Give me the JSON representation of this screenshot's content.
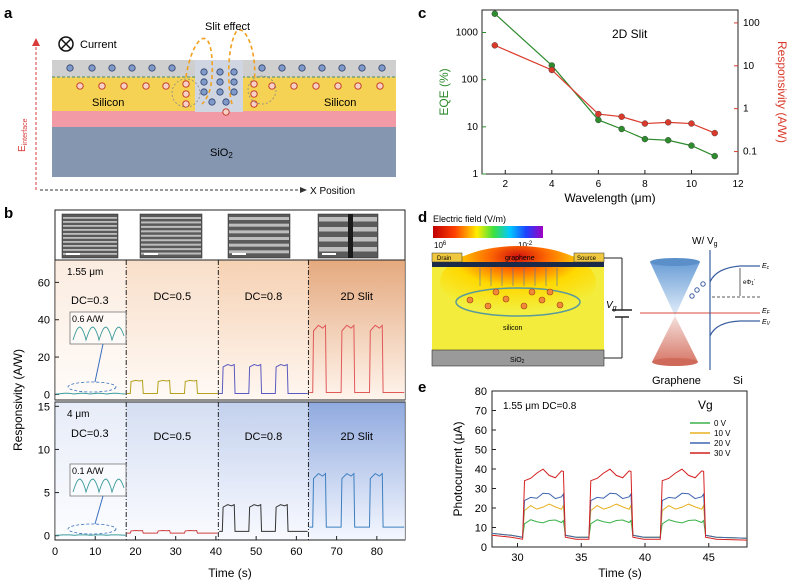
{
  "panel_labels": {
    "a": "a",
    "b": "b",
    "c": "c",
    "d": "d",
    "e": "e"
  },
  "panel_a": {
    "slit_effect": "Slit effect",
    "current": "Current",
    "silicon_left": "Silicon",
    "silicon_right": "Silicon",
    "sio2": "SiO",
    "sio2_sub": "2",
    "e_axis": "E",
    "e_axis_sub": "interface",
    "x_axis": "X Position"
  },
  "panel_d": {
    "colorbar_title": "Electric field (V/m)",
    "cb_max": "10",
    "cb_max_exp": "6",
    "cb_min": "10",
    "cb_min_exp": "-2",
    "drain": "Drain",
    "source": "Source",
    "graphene": "graphene",
    "silicon": "silicon",
    "sio2": "SiO",
    "sio2_sub": "2",
    "vg": "V",
    "vg_sub": "g",
    "band_title": "W/ V",
    "band_title_sub": "g",
    "graphene_label": "Graphene",
    "si_label": "Si",
    "ec": "E",
    "ec_sub": "c",
    "ef": "E",
    "ef_sub": "F",
    "ev": "E",
    "ev_sub": "V",
    "phi": "eΦ",
    "phi_sub": "1",
    "phi_prime": "'"
  },
  "chart_data": [
    {
      "id": "c",
      "type": "line",
      "title": "2D Slit",
      "xlabel": "Wavelength (μm)",
      "ylabel_left": "EQE (%)",
      "ylabel_right": "Responsivity (A/W)",
      "xlim": [
        1,
        12
      ],
      "xticks": [
        2,
        4,
        6,
        8,
        10,
        12
      ],
      "ylim_left": [
        1,
        3000
      ],
      "ylim_right": [
        0.03,
        200
      ],
      "yticks_left": [
        "1",
        "10",
        "100",
        "1000"
      ],
      "yticks_right": [
        "0.1",
        "1",
        "10",
        "100"
      ],
      "scale": "log",
      "series": [
        {
          "axis": "left",
          "color": "#2e8b2e",
          "x": [
            1.55,
            4,
            6,
            7,
            8,
            9,
            10,
            11
          ],
          "y": [
            2500,
            200,
            14,
            9,
            5.5,
            5.2,
            4.0,
            2.4
          ]
        },
        {
          "axis": "right",
          "color": "#d93a2b",
          "x": [
            1.55,
            4,
            6,
            7,
            8,
            9,
            10,
            11
          ],
          "y": [
            30,
            8,
            0.75,
            0.65,
            0.45,
            0.48,
            0.45,
            0.27
          ]
        }
      ]
    },
    {
      "id": "b",
      "type": "line",
      "xlabel": "Time (s)",
      "ylabel": "Responsivity (A/W)",
      "xlim": [
        0,
        87
      ],
      "xticks": [
        0,
        10,
        20,
        30,
        40,
        50,
        60,
        70,
        80
      ],
      "separators": [
        17.7,
        40.6,
        63
      ],
      "top": {
        "label": "1.55 μm",
        "ylim": [
          -3,
          72
        ],
        "yticks": [
          0,
          20,
          40,
          60
        ],
        "regions": [
          {
            "label": "DC=0.3",
            "x0": 0,
            "x1": 17.7,
            "low": 0.2,
            "high": 0.6,
            "color": "#3a9a9a"
          },
          {
            "label": "DC=0.5",
            "x0": 17.7,
            "x1": 40.6,
            "low": 0.5,
            "high": 7.5,
            "color": "#b5a21f"
          },
          {
            "label": "DC=0.8",
            "x0": 40.6,
            "x1": 63,
            "low": 0.5,
            "high": 16,
            "color": "#5a5ac0"
          },
          {
            "label": "2D Slit",
            "x0": 63,
            "x1": 87,
            "low": 1,
            "high": 37,
            "color": "#e05a5a"
          }
        ],
        "inset_label": "0.6 A/W"
      },
      "bottom": {
        "label": "4 μm",
        "ylim": [
          -0.5,
          15.5
        ],
        "yticks": [
          0,
          5,
          10,
          15
        ],
        "regions": [
          {
            "label": "DC=0.3",
            "x0": 0,
            "x1": 17.7,
            "low": 0.05,
            "high": 0.1,
            "color": "#3a9a9a"
          },
          {
            "label": "DC=0.5",
            "x0": 17.7,
            "x1": 40.6,
            "low": 0.3,
            "high": 0.6,
            "color": "#d04040"
          },
          {
            "label": "DC=0.8",
            "x0": 40.6,
            "x1": 63,
            "low": 0.5,
            "high": 3.6,
            "color": "#333333"
          },
          {
            "label": "2D Slit",
            "x0": 63,
            "x1": 87,
            "low": 1,
            "high": 7.2,
            "color": "#3d7fbf"
          }
        ],
        "inset_label": "0.1 A/W"
      }
    },
    {
      "id": "e",
      "type": "line",
      "title": "1.55 μm DC=0.8",
      "legend_title": "Vg",
      "xlabel": "Time (s)",
      "ylabel": "Photocurrent (μA)",
      "xlim": [
        28,
        48
      ],
      "xticks": [
        30,
        35,
        40,
        45
      ],
      "ylim": [
        0,
        80
      ],
      "yticks": [
        0,
        10,
        20,
        30,
        40,
        50,
        60,
        70,
        80
      ],
      "on_intervals": [
        [
          30.4,
          33.6
        ],
        [
          35.6,
          38.9
        ],
        [
          41.2,
          44.6
        ]
      ],
      "series": [
        {
          "name": "0 V",
          "color": "#3bb24a",
          "low": 5,
          "high": 14
        },
        {
          "name": "10 V",
          "color": "#e6b020",
          "low": 5,
          "high": 22
        },
        {
          "name": "20 V",
          "color": "#3f66b0",
          "low": 5,
          "high": 28
        },
        {
          "name": "30 V",
          "color": "#d42020",
          "low": 4,
          "high": 40
        }
      ]
    }
  ]
}
